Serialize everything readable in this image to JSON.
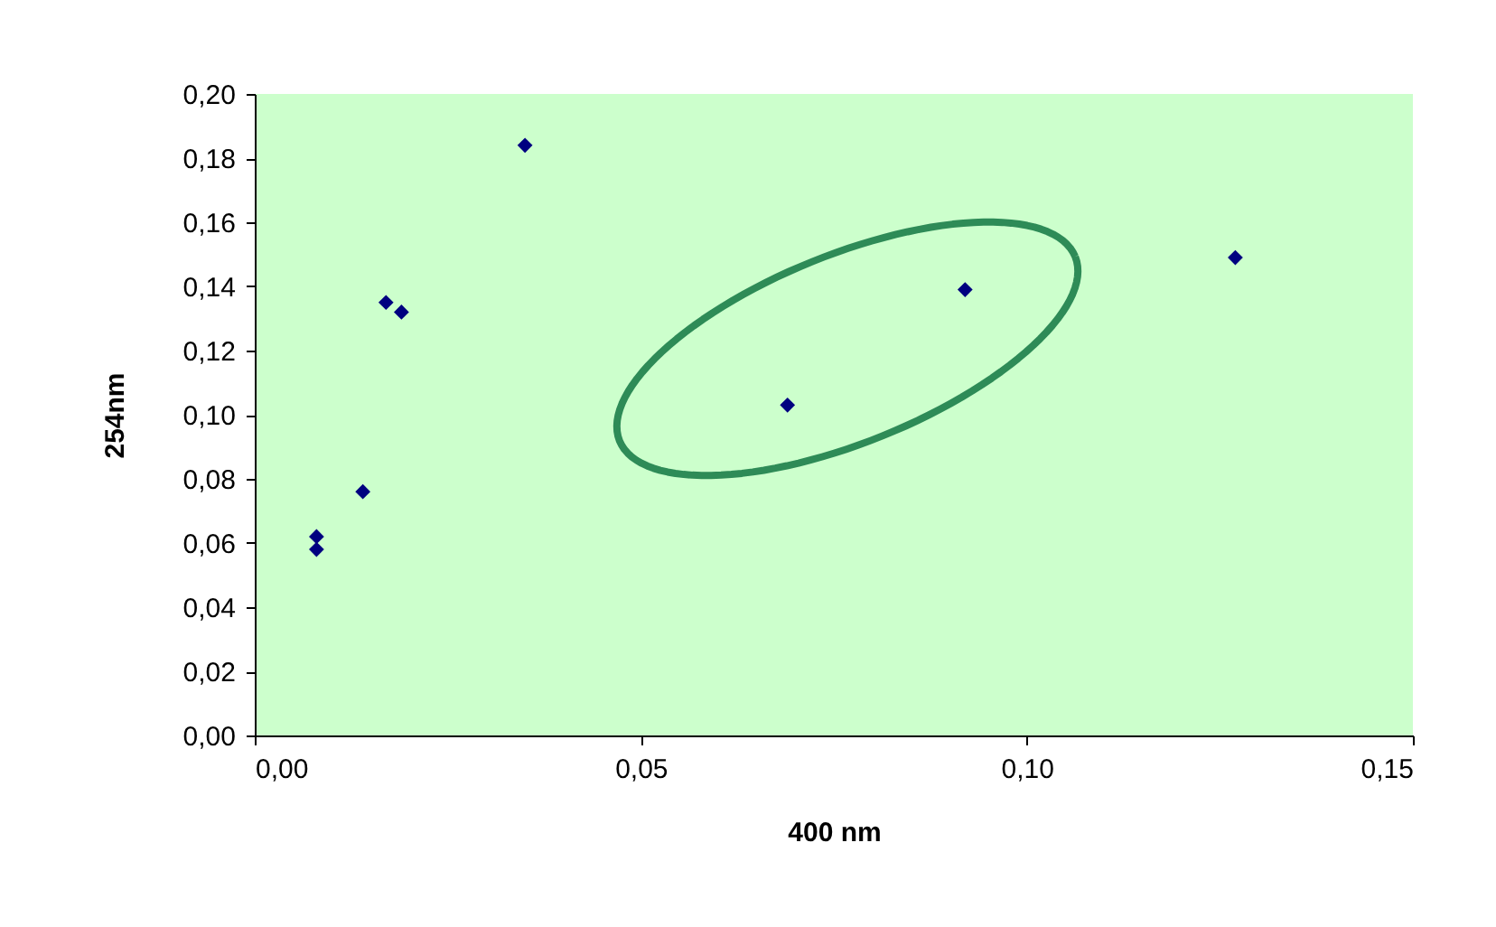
{
  "chart_data": {
    "type": "scatter",
    "xlabel": "400 nm",
    "ylabel": "254nm",
    "x": [
      0.008,
      0.008,
      0.014,
      0.017,
      0.019,
      0.035,
      0.069,
      0.092,
      0.127
    ],
    "series": [
      {
        "color": "#000080",
        "values": [
          0.062,
          0.058,
          0.076,
          0.135,
          0.132,
          0.184,
          0.103,
          0.139,
          0.149
        ]
      }
    ],
    "marker": "diamond",
    "grid": false,
    "xlim": [
      0,
      0.15
    ],
    "ylim": [
      0,
      0.2
    ],
    "xticks": [
      {
        "value": 0,
        "label": "0,00"
      },
      {
        "value": 0.05,
        "label": "0,05"
      },
      {
        "value": 0.1,
        "label": "0,10"
      },
      {
        "value": 0.15,
        "label": "0,15"
      }
    ],
    "yticks": [
      {
        "value": 0,
        "label": "0,00"
      },
      {
        "value": 0.02,
        "label": "0,02"
      },
      {
        "value": 0.04,
        "label": "0,04"
      },
      {
        "value": 0.06,
        "label": "0,06"
      },
      {
        "value": 0.08,
        "label": "0,08"
      },
      {
        "value": 0.1,
        "label": "0,10"
      },
      {
        "value": 0.12,
        "label": "0,12"
      },
      {
        "value": 0.14,
        "label": "0,14"
      },
      {
        "value": 0.16,
        "label": "0,16"
      },
      {
        "value": 0.18,
        "label": "0,18"
      },
      {
        "value": 0.2,
        "label": "0,20"
      }
    ]
  }
}
